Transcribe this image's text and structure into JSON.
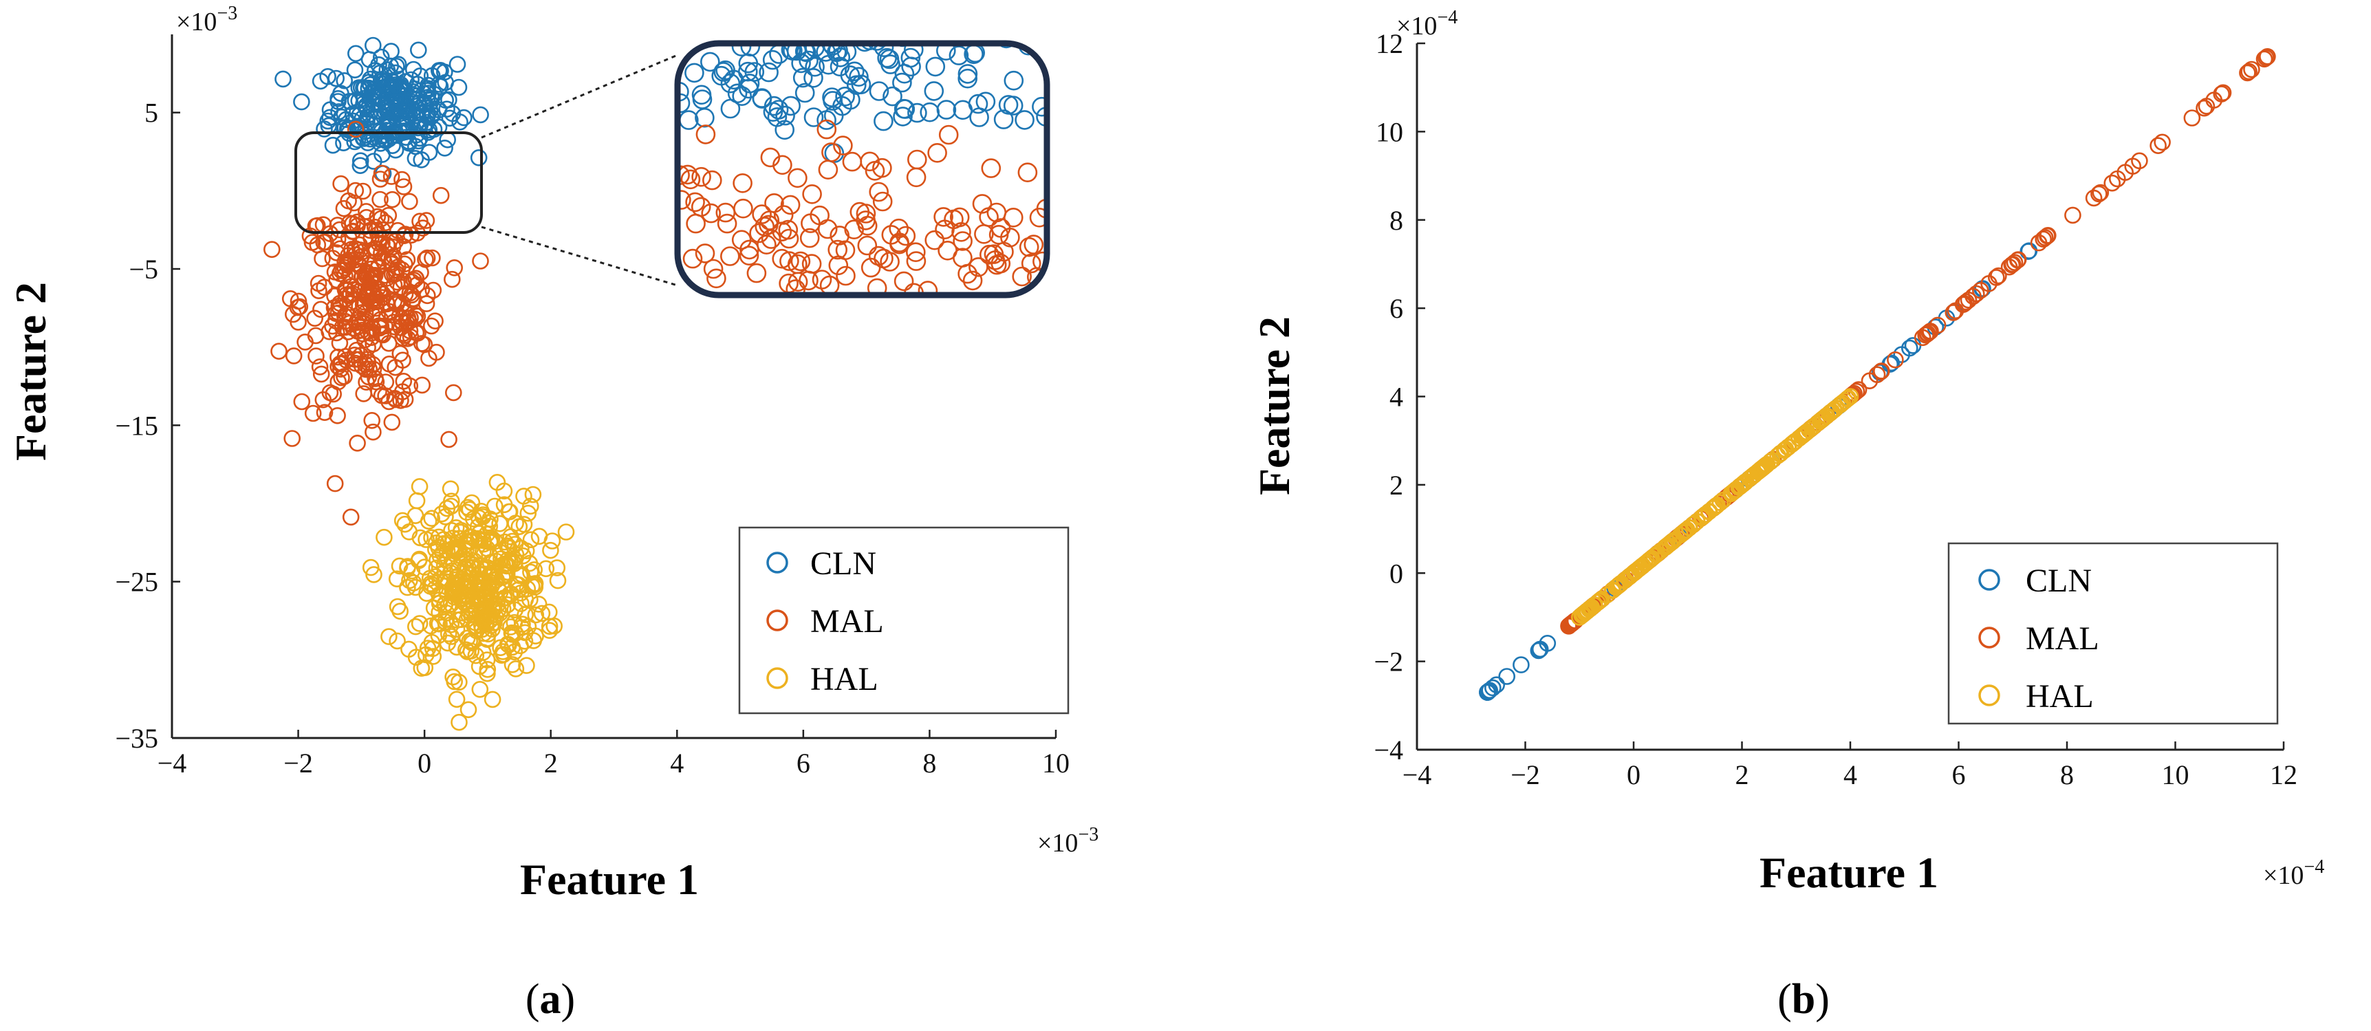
{
  "chart_data": [
    {
      "panel": "a",
      "type": "scatter",
      "xlabel": "Feature 1",
      "ylabel": "Feature 2",
      "x_multiplier": "×10",
      "x_multiplier_exp": "−3",
      "y_multiplier": "×10",
      "y_multiplier_exp": "−3",
      "xlim": [
        -4,
        10
      ],
      "ylim": [
        -35,
        10
      ],
      "xticks": [
        -4,
        -2,
        0,
        2,
        4,
        6,
        8,
        10
      ],
      "xtick_labels": [
        "−4",
        "−2",
        "0",
        "2",
        "4",
        "6",
        "8",
        "10"
      ],
      "yticks": [
        -35,
        -25,
        -15,
        -5,
        5
      ],
      "ytick_labels": [
        "−35",
        "−25",
        "−15",
        "−5",
        "5"
      ],
      "legend": [
        "CLN",
        "MAL",
        "HAL"
      ],
      "legend_position": "lower-right",
      "inset": {
        "description": "zoom of CLN / MAL overlap region",
        "xlim": [
          -1.8,
          0.9
        ],
        "ylim": [
          -2,
          3.5
        ]
      },
      "series": [
        {
          "name": "CLN",
          "color": "#1f77b4",
          "center": [
            -0.5,
            5.3
          ],
          "spread": [
            0.5,
            1.6
          ],
          "count": 260
        },
        {
          "name": "MAL",
          "color": "#d95319",
          "center": [
            -0.85,
            -7.2
          ],
          "spread": [
            0.55,
            3.4
          ],
          "count": 360
        },
        {
          "name": "HAL",
          "color": "#edb120",
          "center": [
            0.8,
            -25.2
          ],
          "spread": [
            0.55,
            2.8
          ],
          "count": 420
        }
      ]
    },
    {
      "panel": "b",
      "type": "scatter",
      "xlabel": "Feature 1",
      "ylabel": "Feature 2",
      "x_multiplier": "×10",
      "x_multiplier_exp": "−4",
      "y_multiplier": "×10",
      "y_multiplier_exp": "−4",
      "xlim": [
        -4,
        12
      ],
      "ylim": [
        -4,
        12
      ],
      "xticks": [
        -4,
        -2,
        0,
        2,
        4,
        6,
        8,
        10,
        12
      ],
      "xtick_labels": [
        "−4",
        "−2",
        "0",
        "2",
        "4",
        "6",
        "8",
        "10",
        "12"
      ],
      "yticks": [
        -4,
        -2,
        0,
        2,
        4,
        6,
        8,
        10,
        12
      ],
      "ytick_labels": [
        "−4",
        "−2",
        "0",
        "2",
        "4",
        "6",
        "8",
        "10",
        "12"
      ],
      "legend": [
        "CLN",
        "MAL",
        "HAL"
      ],
      "legend_position": "lower-right",
      "series": [
        {
          "name": "CLN",
          "color": "#1f77b4",
          "x_range": [
            -2.7,
            7.3
          ],
          "points_along": "y=x"
        },
        {
          "name": "MAL",
          "color": "#d95319",
          "x_range": [
            -1.2,
            11.7
          ],
          "points_along": "y=x"
        },
        {
          "name": "HAL",
          "color": "#edb120",
          "x_range": [
            -1.0,
            4.0
          ],
          "points_along": "y=x"
        }
      ]
    }
  ],
  "subcaptions": [
    {
      "open": "(",
      "letter": "a",
      "close": ")"
    },
    {
      "open": "(",
      "letter": "b",
      "close": ")"
    }
  ]
}
